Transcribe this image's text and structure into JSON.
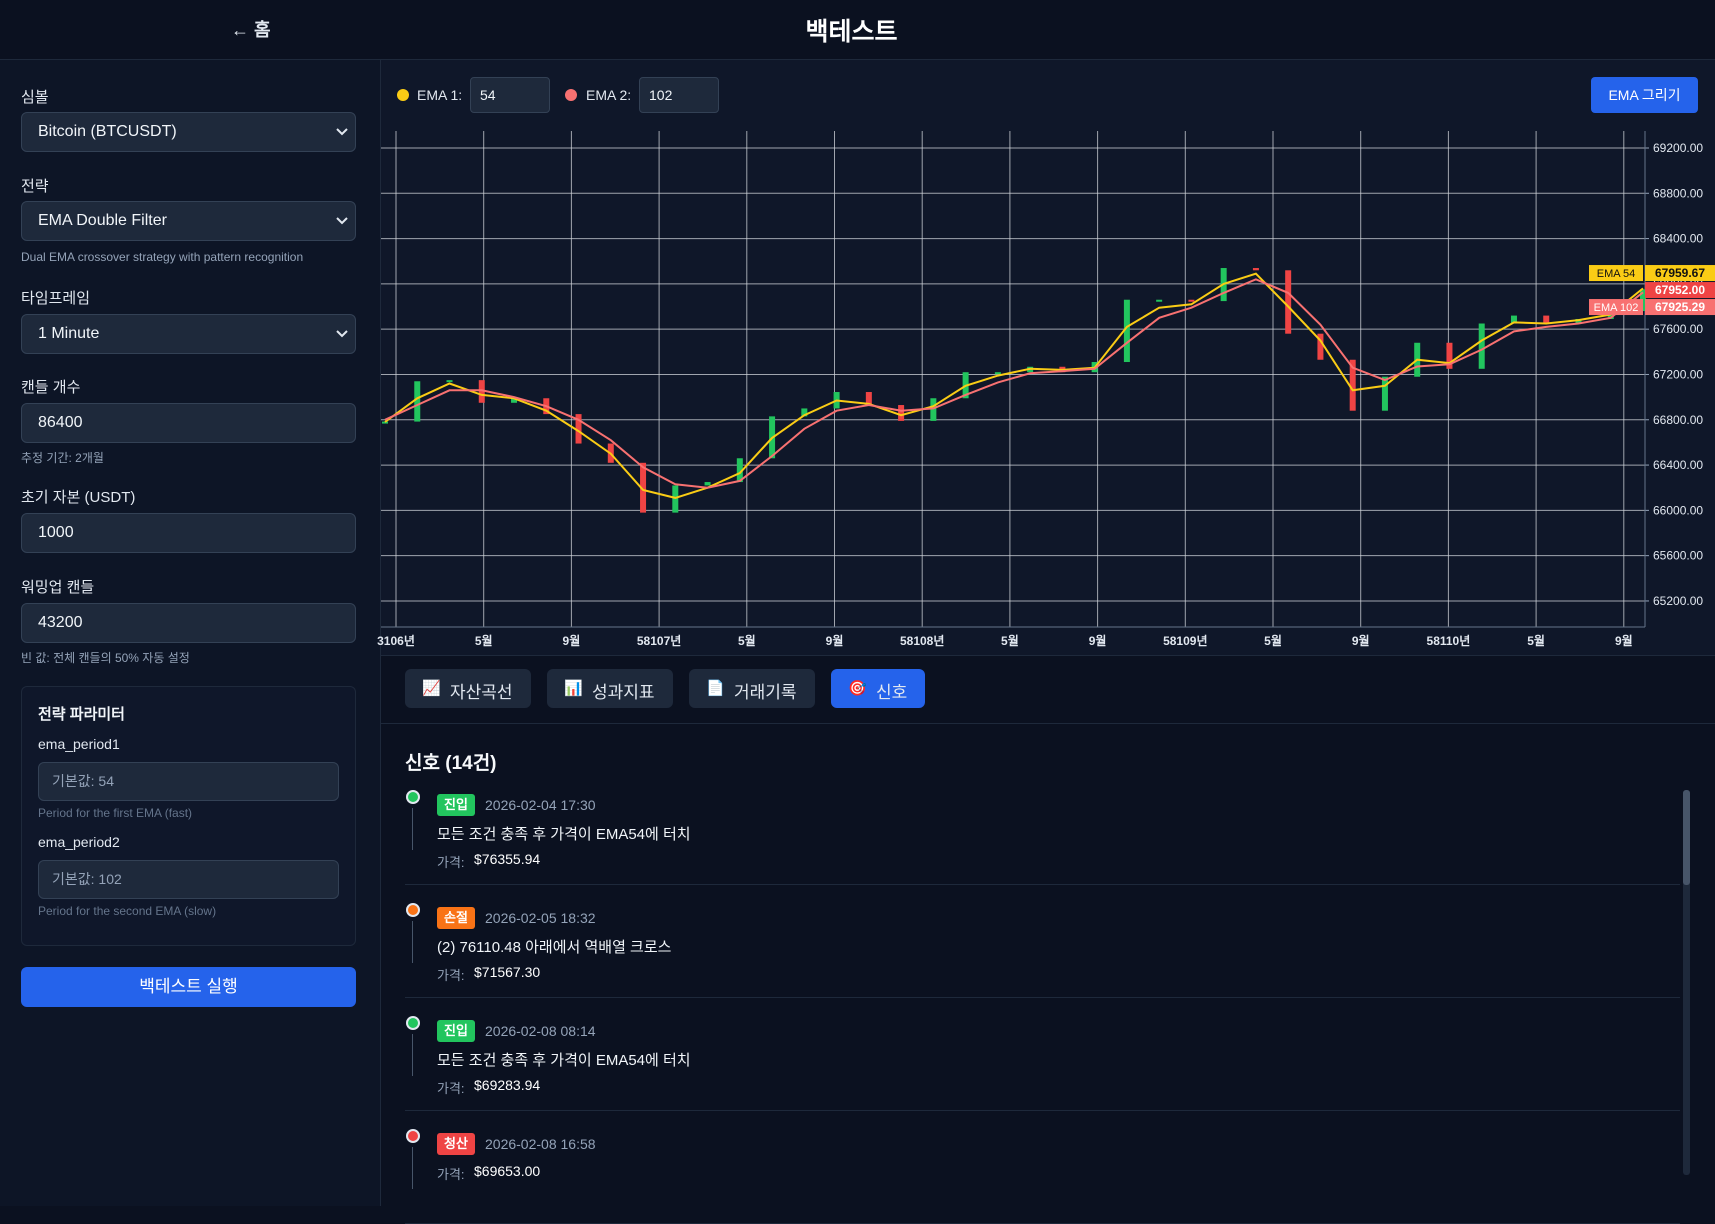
{
  "header": {
    "back": "← 홈",
    "title": "백테스트"
  },
  "sidebar": {
    "fields": [
      {
        "label": "심볼",
        "value": "Bitcoin (BTCUSDT)"
      },
      {
        "label": "전략",
        "value": "EMA Double Filter",
        "help": "Dual EMA crossover strategy with pattern recognition"
      },
      {
        "label": "타임프레임",
        "value": "1 Minute"
      },
      {
        "label": "캔들 개수",
        "value": "86400",
        "help": "추정 기간: 2개월"
      },
      {
        "label": "초기 자본 (USDT)",
        "value": "1000"
      },
      {
        "label": "워밍업 캔들",
        "value": "43200",
        "help": "빈 값: 전체 캔들의 50% 자동 설정"
      }
    ],
    "params": {
      "title": "전략 파라미터",
      "items": [
        {
          "name": "ema_period1",
          "placeholder": "기본값: 54",
          "help": "Period for the first EMA (fast)"
        },
        {
          "name": "ema_period2",
          "placeholder": "기본값: 102",
          "help": "Period for the second EMA (slow)"
        }
      ]
    },
    "run_button": "백테스트 실행"
  },
  "toolbar": {
    "ema1_label": "EMA 1:",
    "ema1_value": "54",
    "ema1_color": "#facc15",
    "ema2_label": "EMA 2:",
    "ema2_value": "102",
    "ema2_color": "#f87171",
    "button": "EMA 그리기"
  },
  "chart_data": {
    "type": "candlestick",
    "x_tick_labels": [
      "3106년",
      "5월",
      "9월",
      "58107년",
      "5월",
      "9월",
      "58108년",
      "5월",
      "9월",
      "58109년",
      "5월",
      "9월",
      "58110년",
      "5월",
      "9월"
    ],
    "ylim": [
      64970,
      69350
    ],
    "yticks": [
      {
        "value": 65200,
        "label": "65200.00"
      },
      {
        "value": 65600,
        "label": "65600.00"
      },
      {
        "value": 66000,
        "label": "66000.00"
      },
      {
        "value": 66400,
        "label": "66400.00"
      },
      {
        "value": 66800,
        "label": "66800.00"
      },
      {
        "value": 67200,
        "label": "67200.00"
      },
      {
        "value": 67600,
        "label": "67600.00"
      },
      {
        "value": 68000,
        "label": "68000.00"
      },
      {
        "value": 68400,
        "label": "68400.00"
      },
      {
        "value": 68800,
        "label": "68800.00"
      },
      {
        "value": 69200,
        "label": "69200.00"
      }
    ],
    "grid": true,
    "candles": {
      "up_color": "#22c55e",
      "down_color": "#ef4444",
      "last_label": "67952.00",
      "close": [
        66784,
        67140,
        67150,
        66950,
        66990,
        66850,
        66590,
        66420,
        65980,
        66220,
        66250,
        66460,
        66830,
        66900,
        67045,
        66930,
        66790,
        66990,
        67220,
        67220,
        67268,
        67220,
        67310,
        67860,
        67860,
        67848,
        68140,
        68120,
        67560,
        67330,
        66880,
        67180,
        67480,
        67250,
        67650,
        67720,
        67650,
        67690,
        67760,
        67952
      ]
    },
    "series": [
      {
        "name": "EMA 54",
        "color": "#facc15",
        "values": [
          66780,
          66990,
          67120,
          67020,
          66990,
          66880,
          66700,
          66500,
          66180,
          66110,
          66200,
          66330,
          66640,
          66840,
          66970,
          66940,
          66840,
          66920,
          67100,
          67190,
          67250,
          67240,
          67260,
          67620,
          67790,
          67820,
          68000,
          68090,
          67800,
          67500,
          67060,
          67100,
          67330,
          67300,
          67500,
          67660,
          67650,
          67680,
          67730,
          67959.67
        ]
      },
      {
        "name": "EMA 102",
        "color": "#f87171",
        "values": [
          66800,
          66930,
          67060,
          67060,
          67000,
          66920,
          66800,
          66620,
          66380,
          66230,
          66200,
          66260,
          66480,
          66720,
          66880,
          66930,
          66880,
          66900,
          67020,
          67130,
          67210,
          67230,
          67250,
          67480,
          67700,
          67790,
          67920,
          68040,
          67920,
          67640,
          67260,
          67150,
          67270,
          67290,
          67420,
          67580,
          67620,
          67650,
          67700,
          67925.29
        ]
      }
    ]
  },
  "tabs": {
    "active": 3,
    "items": [
      {
        "icon": "📈",
        "label": "자산곡선"
      },
      {
        "icon": "📊",
        "label": "성과지표"
      },
      {
        "icon": "📄",
        "label": "거래기록"
      },
      {
        "icon": "🎯",
        "label": "신호"
      }
    ]
  },
  "signals": {
    "title": "신호 (14건)",
    "items": [
      {
        "badge": "진입",
        "color": "#22c55e",
        "time": "2026-02-04 17:30",
        "description": "모든 조건 충족 후 가격이 EMA54에 터치",
        "price_label": "가격:",
        "price": "$76355.94"
      },
      {
        "badge": "손절",
        "color": "#f97316",
        "time": "2026-02-05 18:32",
        "description": "(2) 76110.48 아래에서 역배열 크로스",
        "price_label": "가격:",
        "price": "$71567.30"
      },
      {
        "badge": "진입",
        "color": "#22c55e",
        "time": "2026-02-08 08:14",
        "description": "모든 조건 충족 후 가격이 EMA54에 터치",
        "price_label": "가격:",
        "price": "$69283.94"
      },
      {
        "badge": "청산",
        "color": "#ef4444",
        "time": "2026-02-08 16:58",
        "price_label": "가격:",
        "price": "$69653.00"
      }
    ]
  }
}
